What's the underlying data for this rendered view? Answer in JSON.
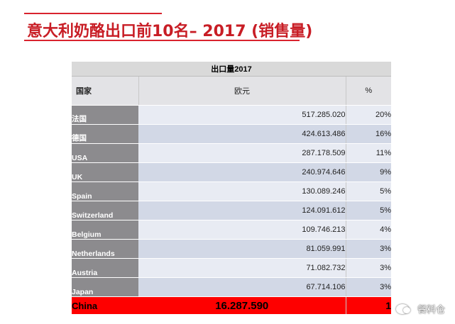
{
  "title": "意大利奶酪出口前10名– 2017 (销售量)",
  "table": {
    "caption": "出口量2017",
    "headers": [
      "国家",
      "欧元",
      "%"
    ],
    "rows": [
      {
        "country": "法国",
        "value": "517.285.020",
        "pct": "20%"
      },
      {
        "country": "德国",
        "value": "424.613.486",
        "pct": "16%"
      },
      {
        "country": "USA",
        "value": "287.178.509",
        "pct": "11%"
      },
      {
        "country": "UK",
        "value": "240.974.646",
        "pct": "9%"
      },
      {
        "country": "Spain",
        "value": "130.089.246",
        "pct": "5%"
      },
      {
        "country": "Switzerland",
        "value": "124.091.612",
        "pct": "5%"
      },
      {
        "country": "Belgium",
        "value": "109.746.213",
        "pct": "4%"
      },
      {
        "country": "Netherlands",
        "value": "81.059.991",
        "pct": "3%"
      },
      {
        "country": "Austria",
        "value": "71.082.732",
        "pct": "3%"
      },
      {
        "country": "Japan",
        "value": "67.714.106",
        "pct": "3%"
      }
    ],
    "highlight": {
      "country": "China",
      "value": "16.287.590",
      "pct": "1"
    }
  },
  "watermark": {
    "text": "餐料仓",
    "icon": "wechat-icon"
  },
  "colors": {
    "title": "#c81d25",
    "highlight": "#fe0000",
    "name_cell": "#8c8b8e"
  }
}
